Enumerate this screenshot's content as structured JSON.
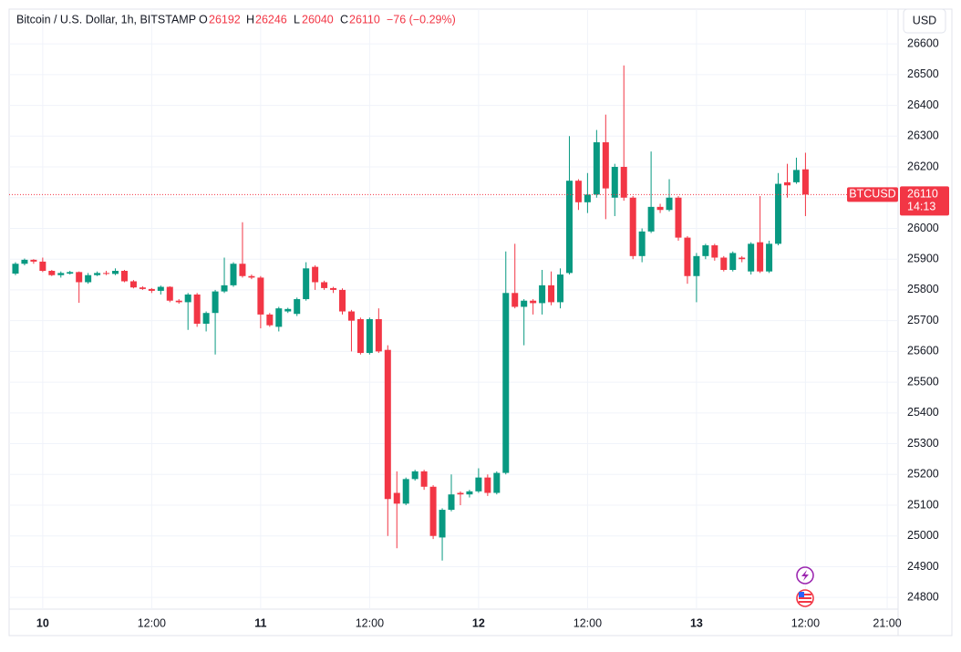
{
  "chart_data": {
    "type": "candlestick",
    "title": "Bitcoin / U.S. Dollar, 1h, BITSTAMP",
    "legend_labels": {
      "open": "O",
      "high": "H",
      "low": "L",
      "close": "C"
    },
    "change_label": "−76 (−0.29%)",
    "currency_button": "USD",
    "symbol": "BTCUSD",
    "countdown": "14:13",
    "up_color": "#089981",
    "down_color": "#f23645",
    "grid": true,
    "xlim": [
      -3.7,
      94.2
    ],
    "ylim": [
      24762,
      26713
    ],
    "xticks": [
      {
        "value": 0,
        "label": "10"
      },
      {
        "value": 12,
        "label": "12:00"
      },
      {
        "value": 24,
        "label": "11"
      },
      {
        "value": 36,
        "label": "12:00"
      },
      {
        "value": 48,
        "label": "12"
      },
      {
        "value": 60,
        "label": "12:00"
      },
      {
        "value": 72,
        "label": "13"
      },
      {
        "value": 84,
        "label": "12:00"
      },
      {
        "value": 93,
        "label": "21:00"
      }
    ],
    "yticks": [
      24800,
      24900,
      25000,
      25100,
      25200,
      25300,
      25400,
      25500,
      25600,
      25700,
      25800,
      25900,
      26000,
      26100,
      26200,
      26300,
      26400,
      26500,
      26600
    ],
    "x": [
      -3,
      -2,
      -1,
      0,
      1,
      2,
      3,
      4,
      5,
      6,
      7,
      8,
      9,
      10,
      11,
      12,
      13,
      14,
      15,
      16,
      17,
      18,
      19,
      20,
      21,
      22,
      23,
      24,
      25,
      26,
      27,
      28,
      29,
      30,
      31,
      32,
      33,
      34,
      35,
      36,
      37,
      38,
      39,
      40,
      41,
      42,
      43,
      44,
      45,
      46,
      47,
      48,
      49,
      50,
      51,
      52,
      53,
      54,
      55,
      56,
      57,
      58,
      59,
      60,
      61,
      62,
      63,
      64,
      65,
      66,
      67,
      68,
      69,
      70,
      71,
      72,
      73,
      74,
      75,
      76,
      77,
      78,
      79,
      80,
      81,
      82,
      83,
      84
    ],
    "open": [
      25853,
      25885,
      25898,
      25892,
      25862,
      25848,
      25853,
      25858,
      25825,
      25848,
      25855,
      25852,
      25862,
      25828,
      25808,
      25803,
      25797,
      25810,
      25765,
      25760,
      25785,
      25690,
      25725,
      25795,
      25815,
      25885,
      25845,
      25840,
      25720,
      25680,
      25730,
      25722,
      25770,
      25875,
      25825,
      25806,
      25800,
      25730,
      25705,
      25595,
      25705,
      25605,
      25140,
      25105,
      25185,
      25210,
      25160,
      24995,
      25085,
      25140,
      25135,
      25145,
      25190,
      25140,
      25205,
      25790,
      25745,
      25765,
      25757,
      25815,
      25760,
      25855,
      26155,
      26085,
      26110,
      26280,
      26100,
      26200,
      26100,
      25910,
      25990,
      26070,
      26060,
      26100,
      25970,
      25845,
      25910,
      25945,
      25905,
      25865,
      25905,
      25860,
      25955,
      25860,
      25950,
      26150,
      26150,
      26192
    ],
    "close": [
      25885,
      25898,
      25892,
      25862,
      25848,
      25855,
      25858,
      25825,
      25848,
      25855,
      25852,
      25862,
      25828,
      25808,
      25803,
      25797,
      25810,
      25765,
      25760,
      25785,
      25690,
      25725,
      25795,
      25815,
      25885,
      25845,
      25840,
      25720,
      25685,
      25740,
      25738,
      25770,
      25870,
      25825,
      25806,
      25800,
      25730,
      25700,
      25595,
      25705,
      25600,
      25120,
      25105,
      25185,
      25210,
      25160,
      25000,
      25085,
      25135,
      25135,
      25145,
      25190,
      25140,
      25205,
      25790,
      25745,
      25765,
      25757,
      25815,
      25760,
      25850,
      26155,
      26085,
      26110,
      26280,
      26130,
      26200,
      26100,
      25910,
      25990,
      26070,
      26060,
      26100,
      25970,
      25845,
      25910,
      25945,
      25905,
      25865,
      25920,
      25900,
      25950,
      25860,
      25950,
      26145,
      26140,
      26190,
      26110
    ],
    "high": [
      25890,
      25902,
      25900,
      25905,
      25865,
      25860,
      25862,
      25860,
      25855,
      25860,
      25862,
      25870,
      25865,
      25832,
      25812,
      25806,
      25814,
      25812,
      25770,
      25790,
      25790,
      25730,
      25800,
      25905,
      25890,
      26020,
      25850,
      25845,
      25725,
      25745,
      25742,
      25775,
      25890,
      25880,
      25830,
      25810,
      25805,
      25735,
      25710,
      25710,
      25740,
      25620,
      25210,
      25190,
      25215,
      25215,
      25165,
      25090,
      25200,
      25145,
      25150,
      25220,
      25200,
      25210,
      25925,
      25950,
      25770,
      25770,
      25865,
      25860,
      25870,
      26300,
      26160,
      26180,
      26320,
      26370,
      26210,
      26530,
      26105,
      26000,
      26250,
      26080,
      26160,
      26105,
      25975,
      25920,
      25950,
      25950,
      25910,
      25925,
      25910,
      25955,
      26105,
      25960,
      26180,
      26210,
      26230,
      26246
    ],
    "low": [
      25848,
      25880,
      25885,
      25858,
      25845,
      25840,
      25850,
      25758,
      25820,
      25845,
      25848,
      25848,
      25825,
      25805,
      25800,
      25790,
      25785,
      25760,
      25755,
      25670,
      25680,
      25665,
      25590,
      25790,
      25810,
      25840,
      25835,
      25675,
      25680,
      25665,
      25725,
      25715,
      25765,
      25800,
      25800,
      25790,
      25720,
      25600,
      25590,
      25590,
      25595,
      25000,
      24960,
      25100,
      25180,
      25150,
      24990,
      24920,
      25080,
      25100,
      25125,
      25140,
      25130,
      25135,
      25200,
      25740,
      25620,
      25720,
      25720,
      25750,
      25740,
      25850,
      26060,
      26050,
      26100,
      26030,
      26040,
      26090,
      25900,
      25890,
      25985,
      26050,
      26055,
      25960,
      25820,
      25760,
      25900,
      25895,
      25860,
      25860,
      25890,
      25850,
      25855,
      25855,
      25945,
      26100,
      26145,
      26040
    ]
  }
}
